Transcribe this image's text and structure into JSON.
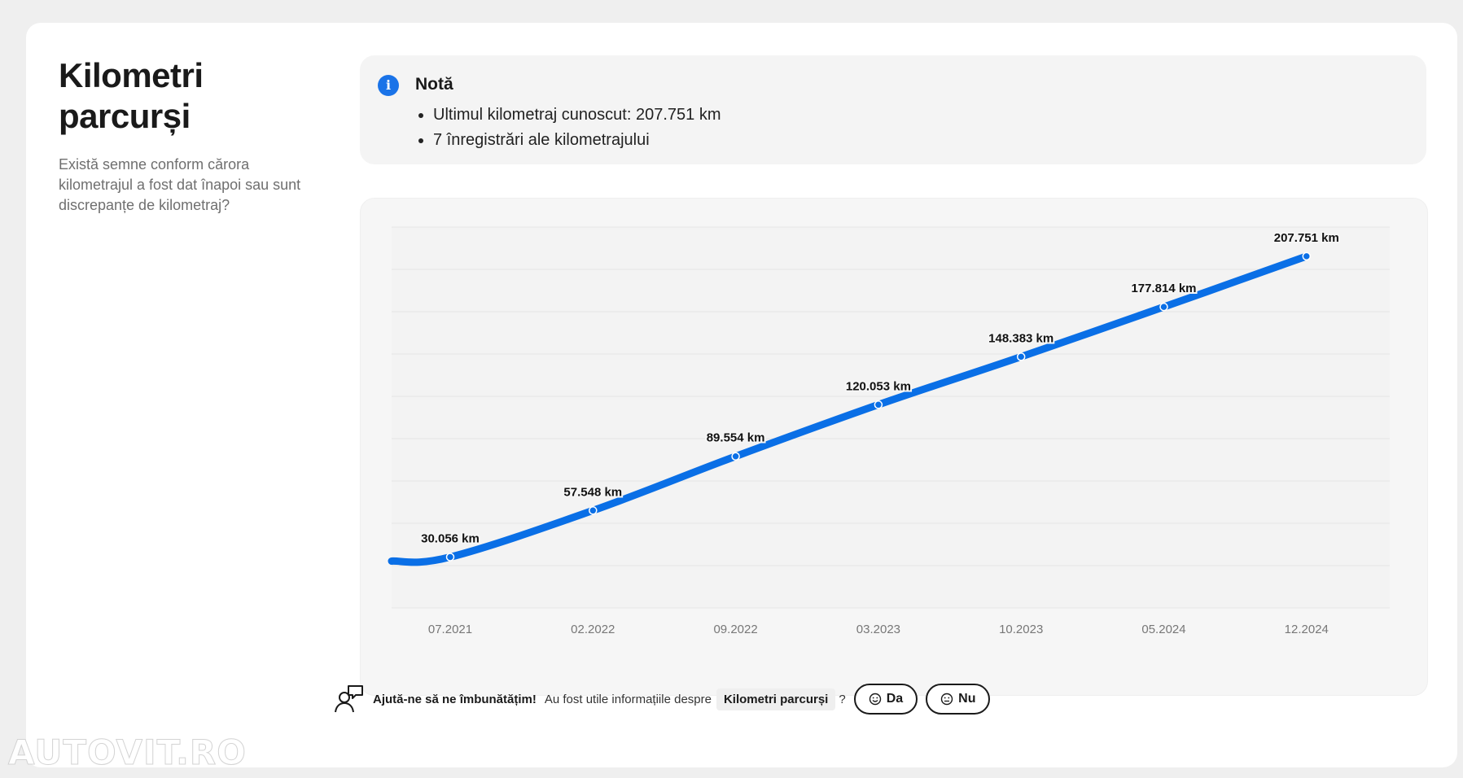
{
  "section": {
    "title": "Kilometri parcurși",
    "subtitle": "Există semne conform cărora kilometrajul a fost dat înapoi sau sunt discrepanțe de kilometraj?"
  },
  "note": {
    "icon": "info-icon",
    "title": "Notă",
    "items": [
      "Ultimul kilometraj cunoscut: 207.751 km",
      "7 înregistrări ale kilometrajului"
    ]
  },
  "chart_data": {
    "type": "line",
    "title": "",
    "xlabel": "",
    "ylabel": "",
    "x": [
      "07.2021",
      "02.2022",
      "09.2022",
      "03.2023",
      "10.2023",
      "05.2024",
      "12.2024"
    ],
    "values": [
      30056,
      57548,
      89554,
      120053,
      148383,
      177814,
      207751
    ],
    "labels": [
      "30.056 km",
      "57.548 km",
      "89.554 km",
      "120.053 km",
      "148.383 km",
      "177.814 km",
      "207.751 km"
    ],
    "ylim": [
      0,
      225000
    ],
    "grid": true,
    "legend": "none",
    "line_color": "#0a6fe6"
  },
  "feedback": {
    "icon": "chat-person-icon",
    "bold": "Ajută-ne să ne îmbunătățim!",
    "question": "Au fost utile informațiile despre",
    "topic": "Kilometri parcurși",
    "qmark": "?",
    "yes": "Da",
    "no": "Nu"
  },
  "watermark": "AUTOVIT.RO"
}
